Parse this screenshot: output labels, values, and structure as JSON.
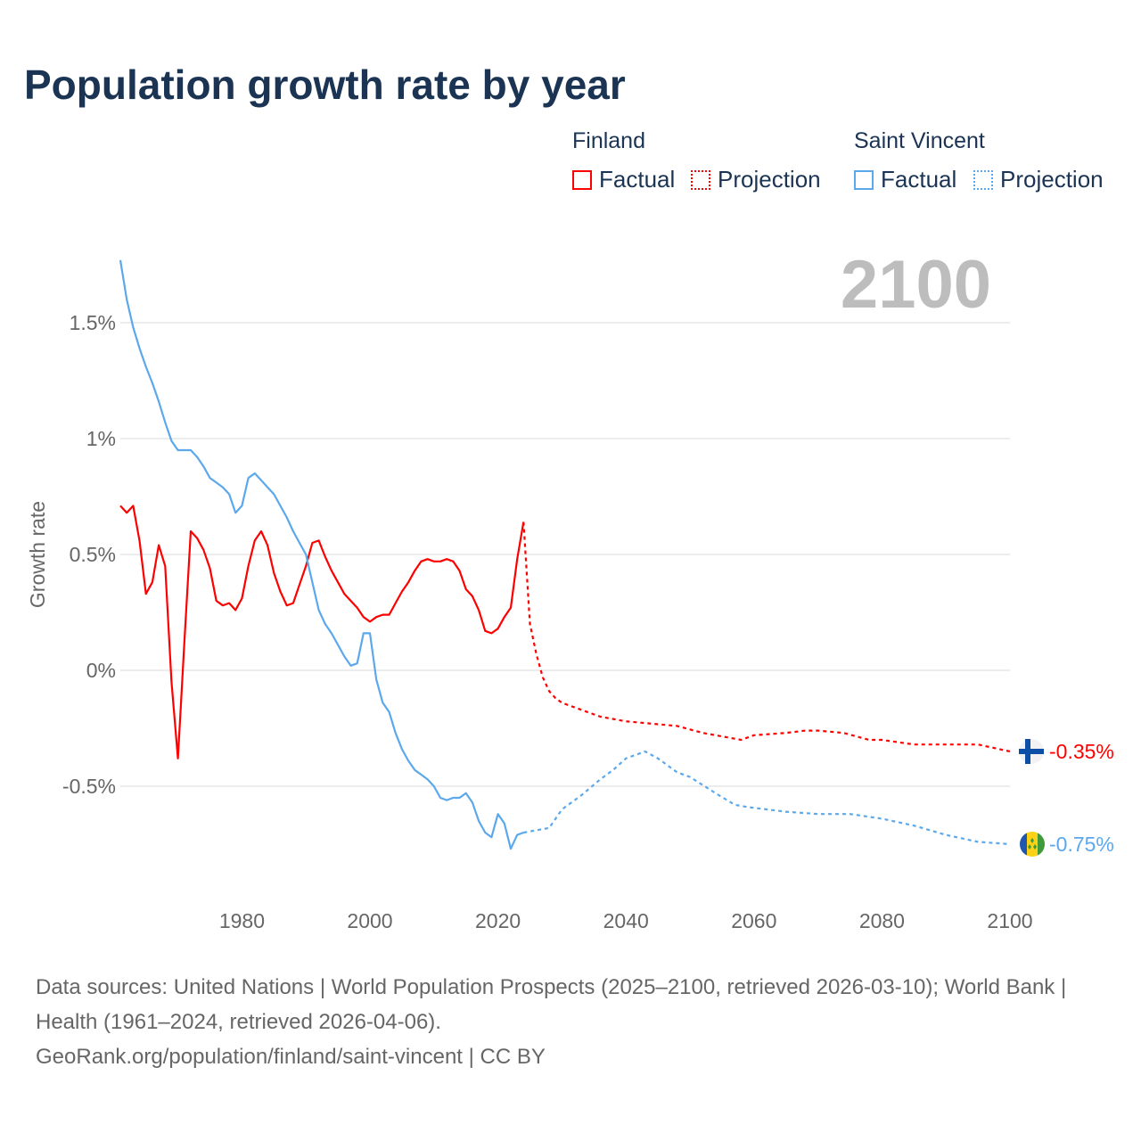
{
  "title": "Population growth rate by year",
  "current_year": "2100",
  "legend": {
    "groups": [
      {
        "name": "Finland",
        "items": [
          "Factual",
          "Projection"
        ],
        "color": "#ff0000"
      },
      {
        "name": "Saint Vincent",
        "items": [
          "Factual",
          "Projection"
        ],
        "color": "#5ba8ec"
      }
    ]
  },
  "end_labels": {
    "finland": "-0.35%",
    "saint_vincent": "-0.75%"
  },
  "source": {
    "line1": "Data sources: United Nations | World Population Prospects (2025–2100, retrieved 2026-03-10); World Bank | Health (1961–2024, retrieved 2026-04-06).",
    "line2": "GeoRank.org/population/finland/saint-vincent | CC BY"
  },
  "chart_data": {
    "type": "line",
    "title": "Population growth rate by year",
    "xlabel": "",
    "ylabel": "Growth rate",
    "xlim": [
      1961,
      2100
    ],
    "ylim": [
      -0.9,
      1.8
    ],
    "xticks": [
      1980,
      2000,
      2020,
      2040,
      2060,
      2080,
      2100
    ],
    "xtick_labels": [
      "1980",
      "2000",
      "2020",
      "2040",
      "2060",
      "2080",
      "2100"
    ],
    "yticks": [
      1.5,
      1,
      0.5,
      0,
      -0.5
    ],
    "ytick_labels": [
      "1.5%",
      "1%",
      "0.5%",
      "0%",
      "-0.5%"
    ],
    "grid": true,
    "legend_position": "top-right",
    "series": [
      {
        "name": "Finland Factual",
        "color": "#ff0000",
        "style": "solid",
        "x_start": 1961,
        "values": [
          0.71,
          0.68,
          0.71,
          0.56,
          0.33,
          0.38,
          0.54,
          0.45,
          -0.05,
          -0.38,
          0.12,
          0.6,
          0.57,
          0.52,
          0.44,
          0.3,
          0.28,
          0.29,
          0.26,
          0.31,
          0.45,
          0.56,
          0.6,
          0.54,
          0.42,
          0.34,
          0.28,
          0.29,
          0.37,
          0.45,
          0.55,
          0.56,
          0.49,
          0.43,
          0.38,
          0.33,
          0.3,
          0.27,
          0.23,
          0.21,
          0.23,
          0.24,
          0.24,
          0.29,
          0.34,
          0.38,
          0.43,
          0.47,
          0.48,
          0.47,
          0.47,
          0.48,
          0.47,
          0.43,
          0.35,
          0.32,
          0.26,
          0.17,
          0.16,
          0.18,
          0.23,
          0.27,
          0.48,
          0.64
        ]
      },
      {
        "name": "Finland Projection",
        "color": "#ff0000",
        "style": "dotted",
        "x": [
          2024,
          2025,
          2026,
          2027,
          2028,
          2029,
          2030,
          2033,
          2036,
          2040,
          2044,
          2048,
          2052,
          2056,
          2058,
          2060,
          2065,
          2068,
          2070,
          2074,
          2078,
          2080,
          2085,
          2090,
          2095,
          2100
        ],
        "values": [
          0.64,
          0.2,
          0.07,
          -0.03,
          -0.09,
          -0.12,
          -0.14,
          -0.17,
          -0.2,
          -0.22,
          -0.23,
          -0.24,
          -0.27,
          -0.29,
          -0.3,
          -0.28,
          -0.27,
          -0.26,
          -0.26,
          -0.27,
          -0.3,
          -0.3,
          -0.32,
          -0.32,
          -0.32,
          -0.35
        ]
      },
      {
        "name": "Saint Vincent Factual",
        "color": "#5ba8ec",
        "style": "solid",
        "x_start": 1961,
        "values": [
          1.77,
          1.6,
          1.48,
          1.39,
          1.31,
          1.24,
          1.16,
          1.07,
          0.99,
          0.95,
          0.95,
          0.95,
          0.92,
          0.88,
          0.83,
          0.81,
          0.79,
          0.76,
          0.68,
          0.71,
          0.83,
          0.85,
          0.82,
          0.79,
          0.76,
          0.71,
          0.66,
          0.6,
          0.55,
          0.5,
          0.38,
          0.26,
          0.2,
          0.16,
          0.11,
          0.06,
          0.02,
          0.03,
          0.16,
          0.16,
          -0.04,
          -0.14,
          -0.18,
          -0.27,
          -0.34,
          -0.39,
          -0.43,
          -0.45,
          -0.47,
          -0.5,
          -0.55,
          -0.56,
          -0.55,
          -0.55,
          -0.53,
          -0.57,
          -0.65,
          -0.7,
          -0.72,
          -0.62,
          -0.66,
          -0.77,
          -0.71,
          -0.7
        ]
      },
      {
        "name": "Saint Vincent Projection",
        "color": "#5ba8ec",
        "style": "dotted",
        "x": [
          2024,
          2026,
          2028,
          2030,
          2033,
          2036,
          2038,
          2040,
          2043,
          2045,
          2048,
          2050,
          2054,
          2057,
          2059,
          2062,
          2065,
          2070,
          2075,
          2080,
          2085,
          2090,
          2095,
          2100
        ],
        "values": [
          -0.7,
          -0.69,
          -0.68,
          -0.6,
          -0.54,
          -0.47,
          -0.43,
          -0.38,
          -0.35,
          -0.38,
          -0.44,
          -0.46,
          -0.53,
          -0.58,
          -0.59,
          -0.6,
          -0.61,
          -0.62,
          -0.62,
          -0.64,
          -0.67,
          -0.71,
          -0.74,
          -0.75
        ]
      }
    ]
  }
}
